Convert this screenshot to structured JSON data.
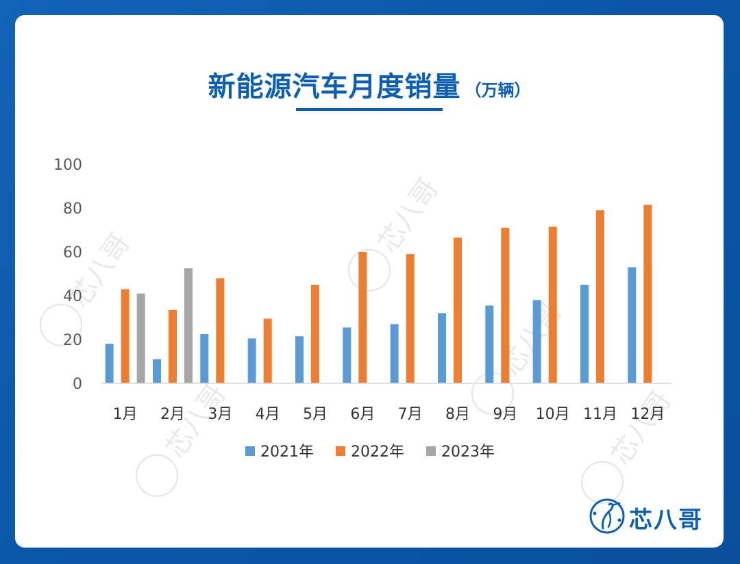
{
  "title": {
    "main": "新能源汽车月度销量",
    "unit": "（万辆）"
  },
  "brand": {
    "name": "芯八哥",
    "logo_icon": "heron-logo-icon"
  },
  "watermark": {
    "text": "芯八哥"
  },
  "colors": {
    "series_2021": "#5b9bd5",
    "series_2022": "#ed7d31",
    "series_2023": "#a5a5a5",
    "brand": "#0c5fb0"
  },
  "chart_data": {
    "type": "bar",
    "categories": [
      "1月",
      "2月",
      "3月",
      "4月",
      "5月",
      "6月",
      "7月",
      "8月",
      "9月",
      "10月",
      "11月",
      "12月"
    ],
    "series": [
      {
        "name": "2021年",
        "values": [
          18,
          11,
          22.5,
          20.5,
          21.5,
          25.5,
          27,
          32,
          35.5,
          38,
          45,
          53
        ]
      },
      {
        "name": "2022年",
        "values": [
          43,
          33.5,
          48,
          29.5,
          45,
          60,
          59,
          66.5,
          71,
          71.5,
          79,
          81.5
        ]
      },
      {
        "name": "2023年",
        "values": [
          41,
          52.5,
          null,
          null,
          null,
          null,
          null,
          null,
          null,
          null,
          null,
          null
        ]
      }
    ],
    "yticks": [
      "0",
      "20",
      "40",
      "60",
      "80",
      "100"
    ],
    "ylim": [
      0,
      100
    ],
    "grid": false,
    "legend": "bottom",
    "xlabel": "",
    "ylabel": ""
  }
}
